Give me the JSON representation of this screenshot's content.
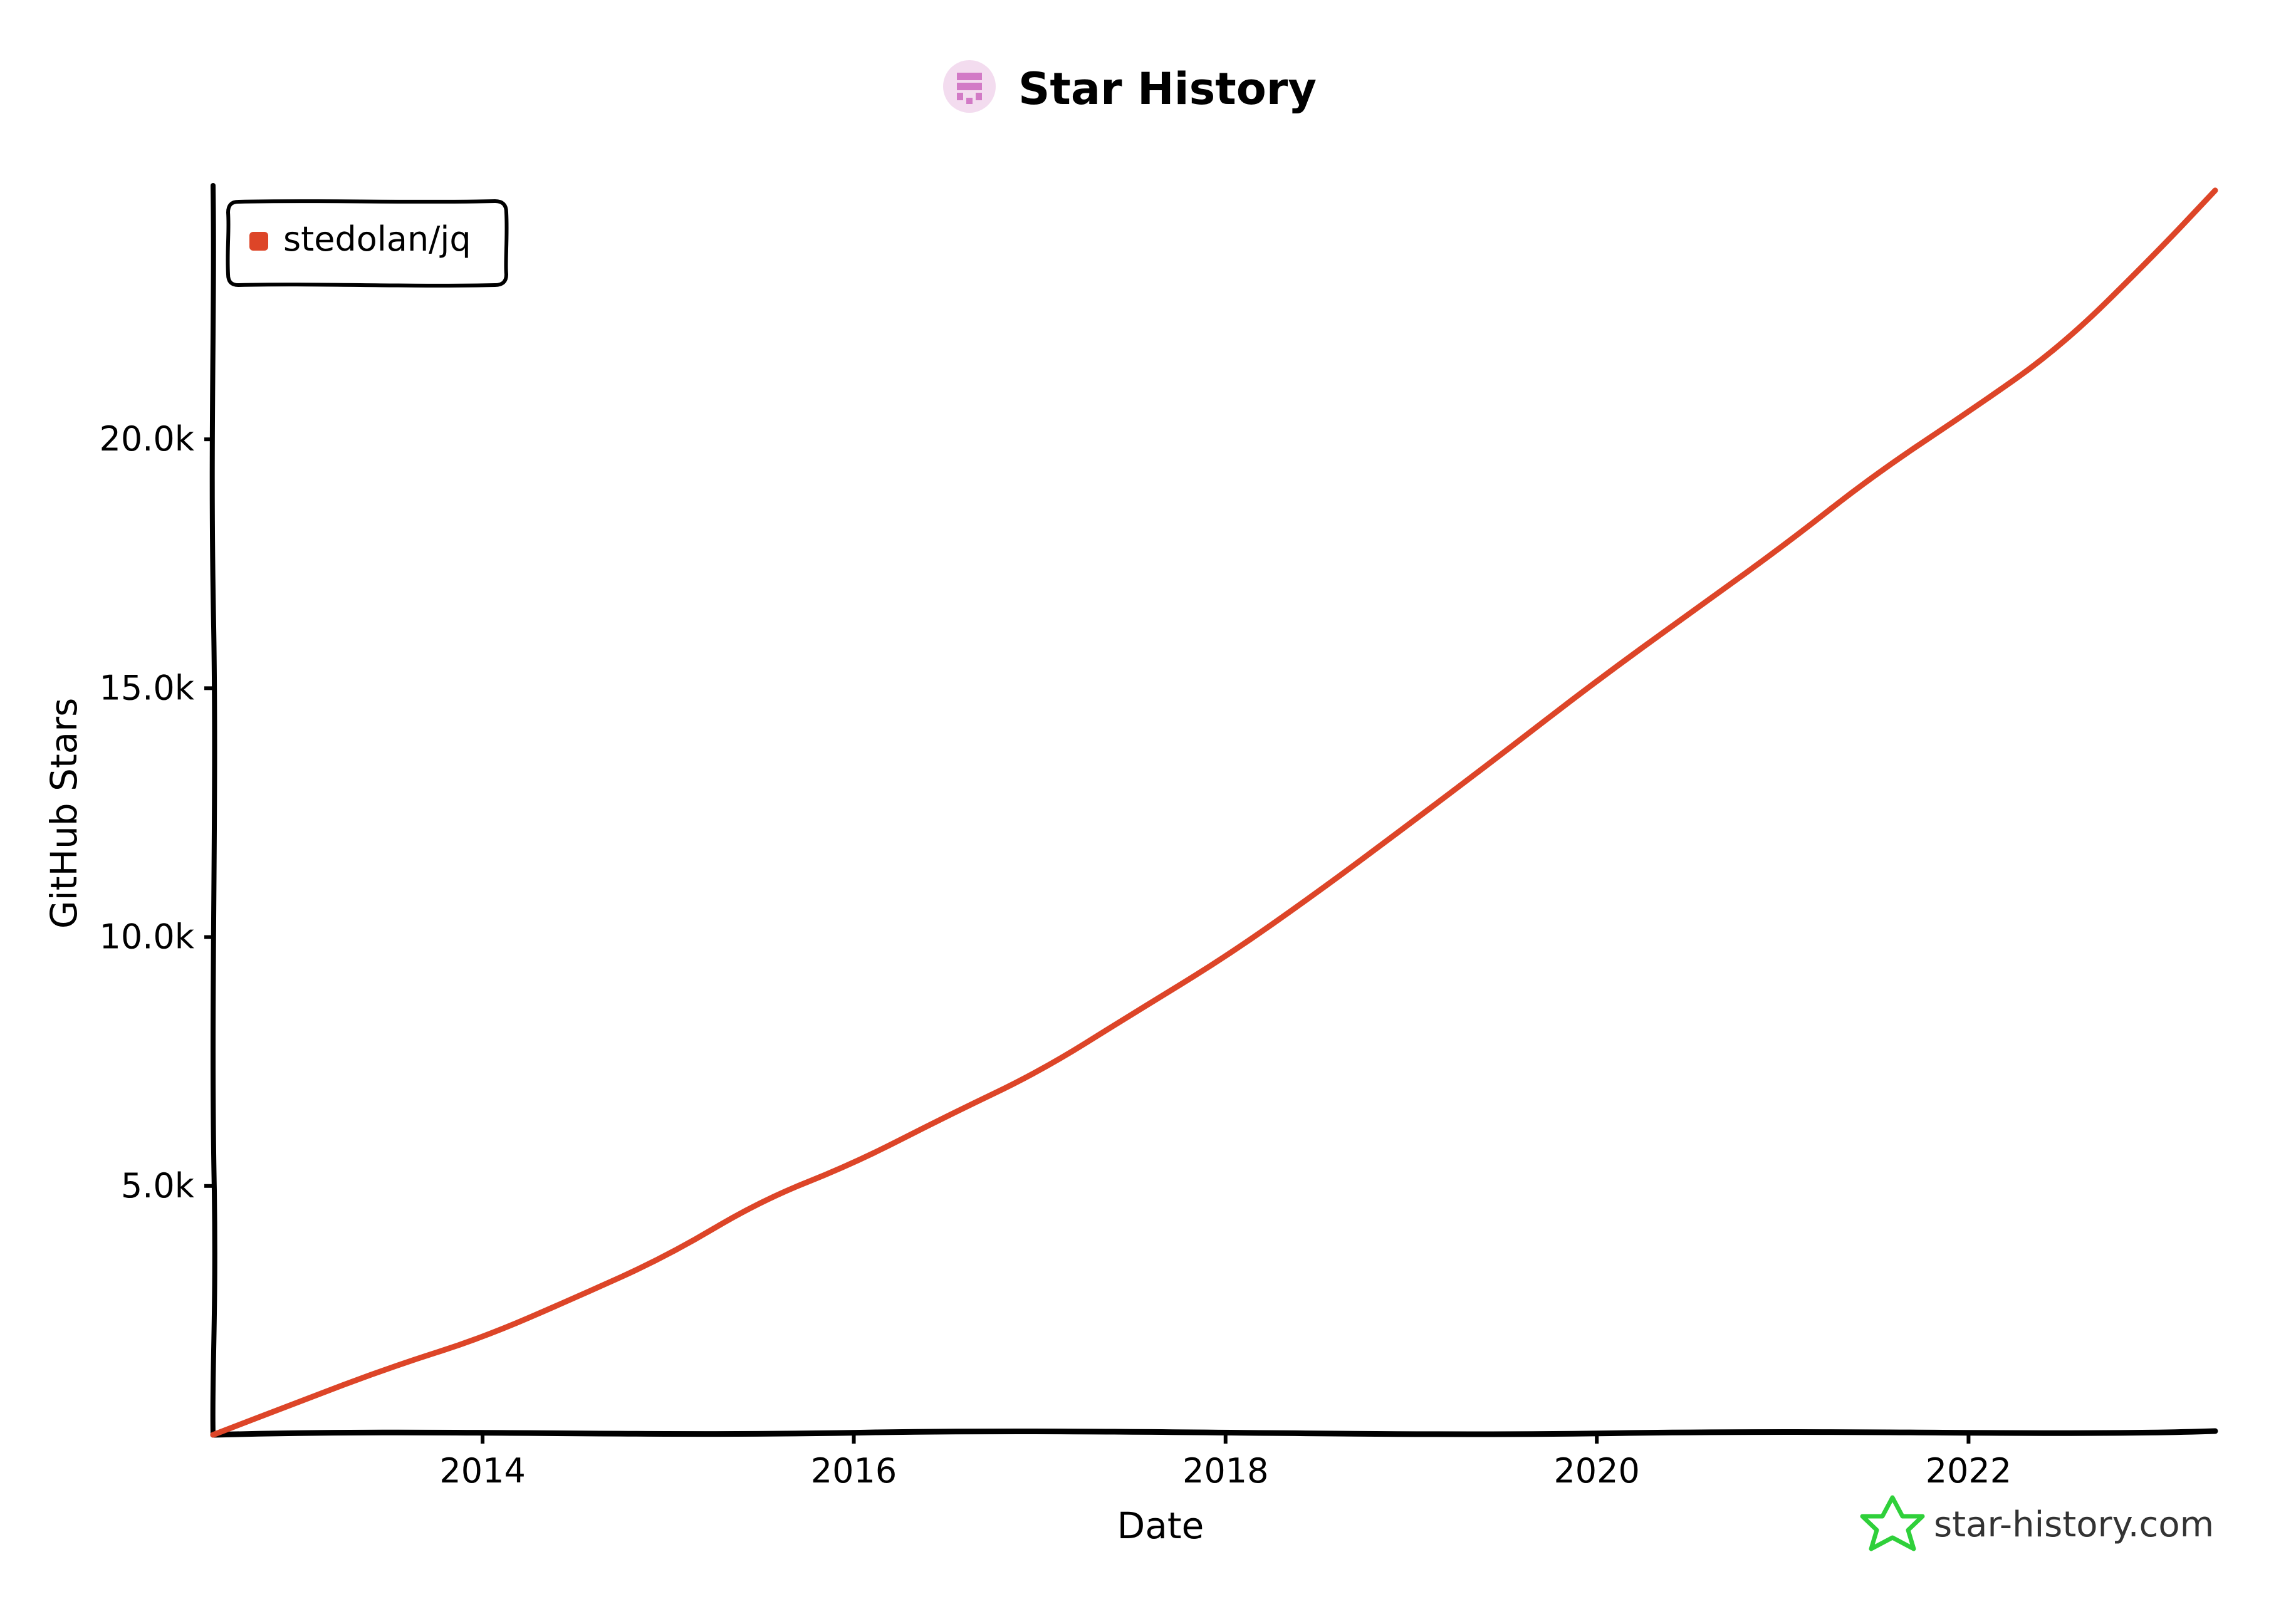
{
  "chart_data": {
    "type": "line",
    "title": "Star History",
    "xlabel": "Date",
    "ylabel": "GitHub Stars",
    "xlim": [
      "2012-07-20",
      "2023-05-01"
    ],
    "ylim": [
      0,
      25100
    ],
    "x_ticks": [
      "2014",
      "2016",
      "2018",
      "2020",
      "2022"
    ],
    "y_ticks": [
      "5.0k",
      "10.0k",
      "15.0k",
      "20.0k"
    ],
    "legend_position": "top-left",
    "grid": false,
    "series": [
      {
        "name": "stedolan/jq",
        "color": "#dd4528",
        "x": [
          "2012-07-20",
          "2013-01-01",
          "2013-07-01",
          "2014-01-01",
          "2014-07-01",
          "2015-01-01",
          "2015-07-01",
          "2016-01-01",
          "2016-07-01",
          "2017-01-01",
          "2017-07-01",
          "2018-01-01",
          "2018-07-01",
          "2019-01-01",
          "2019-07-01",
          "2020-01-01",
          "2020-07-01",
          "2021-01-01",
          "2021-07-01",
          "2022-01-01",
          "2022-07-01",
          "2023-01-01",
          "2023-05-01"
        ],
        "y": [
          0,
          650,
          1350,
          1950,
          2750,
          3600,
          4700,
          5450,
          6400,
          7300,
          8450,
          9600,
          10900,
          12300,
          13700,
          15150,
          16500,
          17850,
          19300,
          20550,
          21850,
          23700,
          25000
        ]
      }
    ]
  },
  "credit": "star-history.com"
}
